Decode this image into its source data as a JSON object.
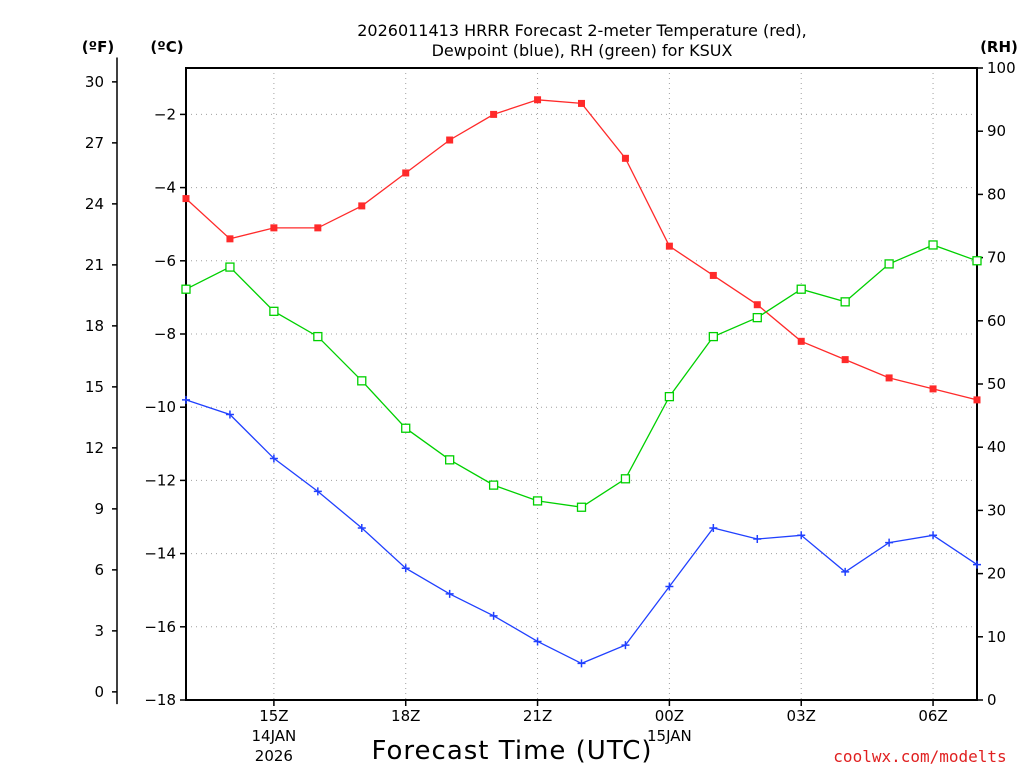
{
  "title": {
    "line1": "2026011413 HRRR Forecast 2-meter Temperature (red),",
    "line2": "Dewpoint (blue), RH (green) for KSUX"
  },
  "units": {
    "fahrenheit": "(ºF)",
    "celsius": "(ºC)",
    "rh": "(RH)"
  },
  "colors": {
    "temperature": "#ff2a2a",
    "dewpoint": "#2040ff",
    "rh": "#00d000",
    "credit": "#e02020"
  },
  "chart_data": {
    "type": "line",
    "title": "2026011413 HRRR Forecast 2-meter Temperature (red), Dewpoint (blue), RH (green) for KSUX",
    "xlabel": "Forecast Time (UTC)",
    "x_hours": [
      13,
      14,
      15,
      16,
      17,
      18,
      19,
      20,
      21,
      22,
      23,
      24,
      25,
      26,
      27,
      28,
      29,
      30,
      31
    ],
    "x_ticks": [
      {
        "hour": 15,
        "label": "15Z",
        "sub1": "14JAN",
        "sub2": "2026"
      },
      {
        "hour": 18,
        "label": "18Z",
        "sub1": "",
        "sub2": ""
      },
      {
        "hour": 21,
        "label": "21Z",
        "sub1": "",
        "sub2": ""
      },
      {
        "hour": 24,
        "label": "00Z",
        "sub1": "15JAN",
        "sub2": ""
      },
      {
        "hour": 27,
        "label": "03Z",
        "sub1": "",
        "sub2": ""
      },
      {
        "hour": 30,
        "label": "06Z",
        "sub1": "",
        "sub2": ""
      }
    ],
    "xlim": [
      13,
      31
    ],
    "y_celsius": {
      "ylim": [
        -18,
        -0.3
      ],
      "ticks": [
        -2,
        -4,
        -6,
        -8,
        -10,
        -12,
        -14,
        -16,
        -18
      ]
    },
    "y_fahrenheit": {
      "ticks": [
        30,
        27,
        24,
        21,
        18,
        15,
        12,
        9,
        6,
        3,
        0
      ]
    },
    "y_rh": {
      "ylim": [
        0,
        100
      ],
      "ticks": [
        100,
        90,
        80,
        70,
        60,
        50,
        40,
        30,
        20,
        10,
        0
      ]
    },
    "series": [
      {
        "name": "Temperature",
        "axis": "celsius",
        "marker": "filled-square",
        "values": [
          -4.3,
          -5.4,
          -5.1,
          -5.1,
          -4.5,
          -3.6,
          -2.7,
          -2.0,
          -1.6,
          -1.7,
          -3.2,
          -5.6,
          -6.4,
          -7.2,
          -8.2,
          -8.7,
          -9.2,
          -9.5,
          -9.8
        ]
      },
      {
        "name": "Dewpoint",
        "axis": "celsius",
        "marker": "plus",
        "values": [
          -9.8,
          -10.2,
          -11.4,
          -12.3,
          -13.3,
          -14.4,
          -15.1,
          -15.7,
          -16.4,
          -17.0,
          -16.5,
          -14.9,
          -13.3,
          -13.6,
          -13.5,
          -14.5,
          -13.7,
          -13.5,
          -14.3
        ]
      },
      {
        "name": "RH",
        "axis": "rh",
        "marker": "open-square",
        "values": [
          65,
          68.5,
          61.5,
          57.5,
          50.5,
          43,
          38,
          34,
          31.5,
          30.5,
          35,
          48,
          57.5,
          60.5,
          65,
          63,
          69,
          72,
          69.5
        ]
      }
    ]
  },
  "credit": "coolwx.com/modelts"
}
